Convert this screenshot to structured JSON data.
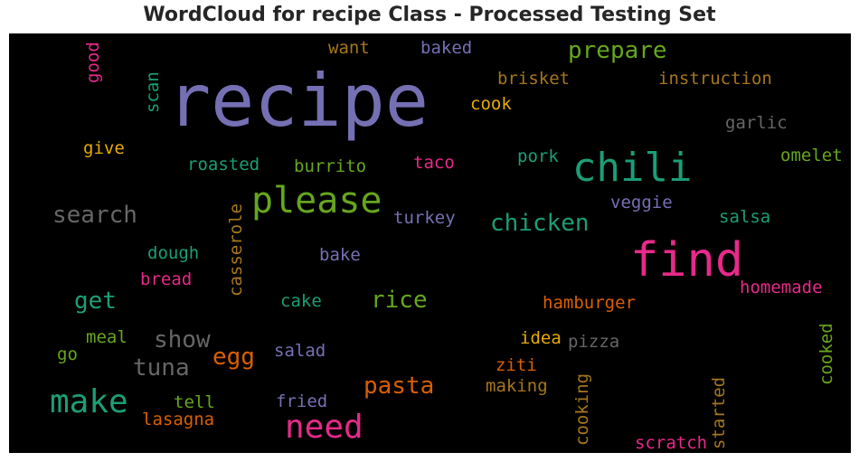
{
  "chart_data": {
    "type": "wordcloud",
    "title": "WordCloud for recipe Class - Processed Testing Set",
    "background": "#000000",
    "words": [
      {
        "text": "recipe",
        "color": "#7570b3"
      },
      {
        "text": "find",
        "color": "#e7298a"
      },
      {
        "text": "chili",
        "color": "#1b9e77"
      },
      {
        "text": "please",
        "color": "#66a61e"
      },
      {
        "text": "make",
        "color": "#1b9e77"
      },
      {
        "text": "need",
        "color": "#e7298a"
      },
      {
        "text": "search",
        "color": "#666666"
      },
      {
        "text": "chicken",
        "color": "#1b9e77"
      },
      {
        "text": "prepare",
        "color": "#66a61e"
      },
      {
        "text": "pasta",
        "color": "#d95f02"
      },
      {
        "text": "rice",
        "color": "#66a61e"
      },
      {
        "text": "get",
        "color": "#1b9e77"
      },
      {
        "text": "show",
        "color": "#666666"
      },
      {
        "text": "tuna",
        "color": "#666666"
      },
      {
        "text": "egg",
        "color": "#d95f02"
      },
      {
        "text": "want",
        "color": "#a6761d"
      },
      {
        "text": "baked",
        "color": "#7570b3"
      },
      {
        "text": "brisket",
        "color": "#a6761d"
      },
      {
        "text": "instruction",
        "color": "#a6761d"
      },
      {
        "text": "cook",
        "color": "#e6ab02"
      },
      {
        "text": "garlic",
        "color": "#666666"
      },
      {
        "text": "give",
        "color": "#e6ab02"
      },
      {
        "text": "roasted",
        "color": "#1b9e77"
      },
      {
        "text": "burrito",
        "color": "#66a61e"
      },
      {
        "text": "taco",
        "color": "#e7298a"
      },
      {
        "text": "pork",
        "color": "#1b9e77"
      },
      {
        "text": "omelet",
        "color": "#66a61e"
      },
      {
        "text": "turkey",
        "color": "#7570b3"
      },
      {
        "text": "veggie",
        "color": "#7570b3"
      },
      {
        "text": "salsa",
        "color": "#1b9e77"
      },
      {
        "text": "dough",
        "color": "#1b9e77"
      },
      {
        "text": "bake",
        "color": "#7570b3"
      },
      {
        "text": "bread",
        "color": "#e7298a"
      },
      {
        "text": "cake",
        "color": "#1b9e77"
      },
      {
        "text": "hamburger",
        "color": "#d95f02"
      },
      {
        "text": "homemade",
        "color": "#e7298a"
      },
      {
        "text": "meal",
        "color": "#66a61e"
      },
      {
        "text": "go",
        "color": "#66a61e"
      },
      {
        "text": "salad",
        "color": "#7570b3"
      },
      {
        "text": "idea",
        "color": "#e6ab02"
      },
      {
        "text": "pizza",
        "color": "#666666"
      },
      {
        "text": "ziti",
        "color": "#d95f02"
      },
      {
        "text": "making",
        "color": "#a6761d"
      },
      {
        "text": "tell",
        "color": "#66a61e"
      },
      {
        "text": "fried",
        "color": "#7570b3"
      },
      {
        "text": "lasagna",
        "color": "#d95f02"
      },
      {
        "text": "scratch",
        "color": "#e7298a"
      },
      {
        "text": "good",
        "color": "#e7298a"
      },
      {
        "text": "scan",
        "color": "#1b9e77"
      },
      {
        "text": "casserole",
        "color": "#a6761d"
      },
      {
        "text": "cooking",
        "color": "#a6761d"
      },
      {
        "text": "started",
        "color": "#a6761d"
      },
      {
        "text": "cooked",
        "color": "#66a61e"
      }
    ]
  }
}
